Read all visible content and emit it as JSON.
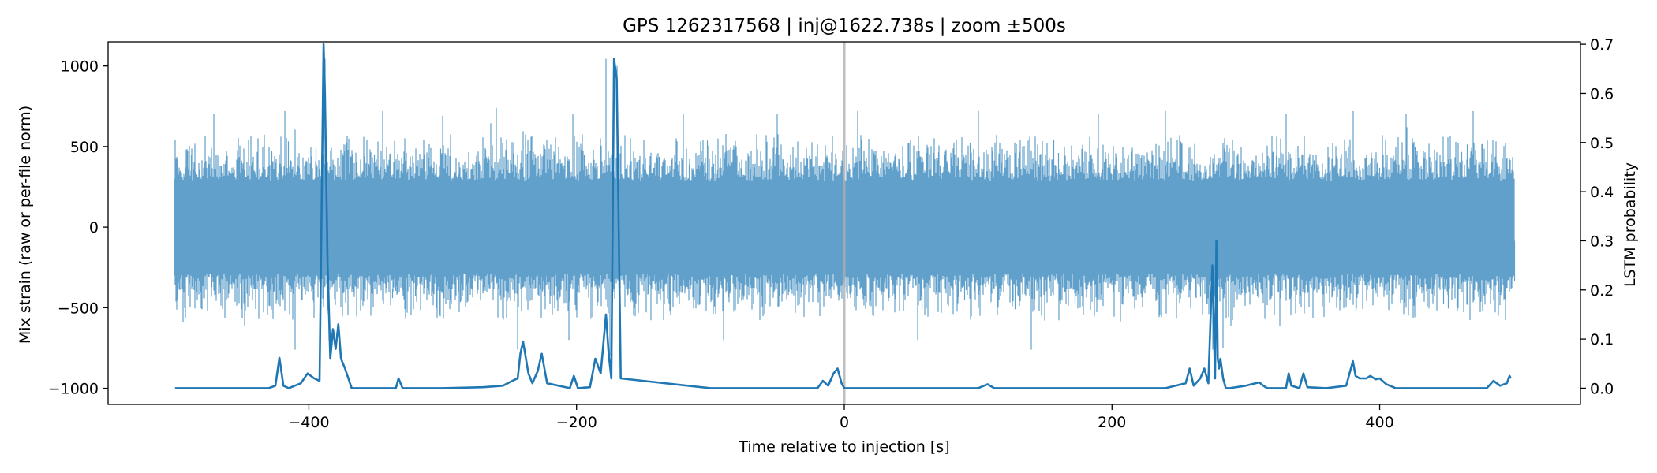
{
  "chart_data": {
    "type": "line",
    "title": "GPS 1262317568 | inj@1622.738s | zoom ±500s",
    "xlabel": "Time relative to injection [s]",
    "ylabel": "Mix strain (raw or per-file norm)",
    "y2label": "LSTM probability",
    "xlim": [
      -550,
      550
    ],
    "ylim": [
      -1100,
      1150
    ],
    "y2lim": [
      -0.033,
      0.705
    ],
    "x_ticks": [
      -400,
      -200,
      0,
      200,
      400
    ],
    "x_tick_labels": [
      "−400",
      "−200",
      "0",
      "200",
      "400"
    ],
    "y_ticks": [
      -1000,
      -500,
      0,
      500,
      1000
    ],
    "y_tick_labels": [
      "−1000",
      "−500",
      "0",
      "500",
      "1000"
    ],
    "y2_ticks": [
      0.0,
      0.1,
      0.2,
      0.3,
      0.4,
      0.5,
      0.6,
      0.7
    ],
    "y2_tick_labels": [
      "0.0",
      "0.1",
      "0.2",
      "0.3",
      "0.4",
      "0.5",
      "0.6",
      "0.7"
    ],
    "grid": false,
    "injection_marker_x": 0,
    "colors": {
      "strain": "#5f9ecb",
      "probability": "#1f77b4",
      "marker": "#b0b0b0"
    },
    "series": [
      {
        "axis": "left",
        "x_range": [
          -500,
          500
        ],
        "envelope": {
          "typical": 340,
          "max": 1045,
          "min": -800
        },
        "spikes": [
          {
            "x": -471,
            "y": 700
          },
          {
            "x": -448,
            "y": -610
          },
          {
            "x": -418,
            "y": 720
          },
          {
            "x": -410,
            "y": -760
          },
          {
            "x": -388,
            "y": 1045
          },
          {
            "x": -385,
            "y": -700
          },
          {
            "x": -345,
            "y": 720
          },
          {
            "x": -300,
            "y": 690
          },
          {
            "x": -260,
            "y": 740
          },
          {
            "x": -244,
            "y": -760
          },
          {
            "x": -206,
            "y": -700
          },
          {
            "x": -178,
            "y": 1045
          },
          {
            "x": -175,
            "y": -800
          },
          {
            "x": -170,
            "y": 1000
          },
          {
            "x": -120,
            "y": 700
          },
          {
            "x": -90,
            "y": -700
          },
          {
            "x": -50,
            "y": 700
          },
          {
            "x": 10,
            "y": 720
          },
          {
            "x": 55,
            "y": -700
          },
          {
            "x": 100,
            "y": 720
          },
          {
            "x": 140,
            "y": -760
          },
          {
            "x": 190,
            "y": 700
          },
          {
            "x": 240,
            "y": 720
          },
          {
            "x": 275,
            "y": -760
          },
          {
            "x": 283,
            "y": -750
          },
          {
            "x": 330,
            "y": 700
          },
          {
            "x": 380,
            "y": 720
          },
          {
            "x": 420,
            "y": 700
          },
          {
            "x": 470,
            "y": 720
          },
          {
            "x": 495,
            "y": 430
          }
        ]
      },
      {
        "axis": "right",
        "x": [
          -500,
          -430,
          -425,
          -422,
          -419,
          -415,
          -406,
          -401,
          -396,
          -392,
          -389,
          -388,
          -386,
          -384,
          -382,
          -380,
          -378,
          -376,
          -373,
          -368,
          -335,
          -333,
          -330,
          -300,
          -270,
          -255,
          -248,
          -244,
          -242,
          -240,
          -236,
          -233,
          -229,
          -226,
          -222,
          -205,
          -202,
          -199,
          -190,
          -186,
          -182,
          -178,
          -176,
          -174,
          -172,
          -170,
          -167,
          -100,
          -20,
          -16,
          -12,
          -8,
          -5,
          -2,
          0,
          100,
          107,
          112,
          240,
          255,
          258,
          261,
          266,
          269,
          272,
          275,
          277,
          278,
          279,
          280,
          281,
          283,
          285,
          286,
          288,
          300,
          310,
          313,
          316,
          330,
          332,
          334,
          340,
          343,
          346,
          360,
          375,
          380,
          382,
          385,
          390,
          393,
          397,
          400,
          405,
          412,
          480,
          485,
          490,
          495,
          497,
          498
        ],
        "y": [
          0.0,
          0.0,
          0.005,
          0.062,
          0.005,
          0.0,
          0.01,
          0.03,
          0.02,
          0.015,
          0.7,
          0.6,
          0.25,
          0.06,
          0.12,
          0.08,
          0.13,
          0.06,
          0.04,
          0.0,
          0.0,
          0.02,
          0.0,
          0.0,
          0.002,
          0.005,
          0.015,
          0.02,
          0.07,
          0.095,
          0.03,
          0.01,
          0.035,
          0.07,
          0.01,
          0.0,
          0.025,
          0.0,
          0.002,
          0.06,
          0.03,
          0.15,
          0.07,
          0.02,
          0.67,
          0.63,
          0.02,
          0.0,
          0.0,
          0.015,
          0.005,
          0.03,
          0.04,
          0.01,
          0.0,
          0.0,
          0.008,
          0.0,
          0.0,
          0.01,
          0.04,
          0.005,
          0.02,
          0.04,
          0.01,
          0.25,
          0.02,
          0.3,
          0.06,
          0.04,
          0.06,
          0.02,
          0.0,
          0.0,
          0.0,
          0.005,
          0.012,
          0.005,
          0.0,
          0.0,
          0.03,
          0.005,
          0.0,
          0.03,
          0.002,
          0.0,
          0.005,
          0.055,
          0.025,
          0.02,
          0.02,
          0.025,
          0.018,
          0.02,
          0.008,
          0.0,
          0.0,
          0.015,
          0.005,
          0.01,
          0.025,
          0.02
        ]
      }
    ]
  }
}
